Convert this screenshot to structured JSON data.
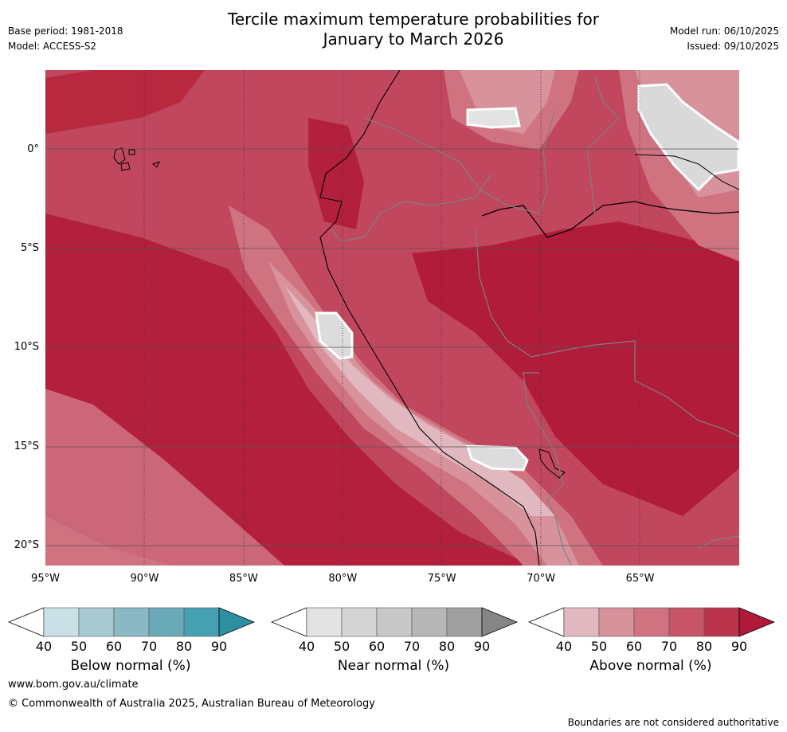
{
  "header": {
    "base_period": "Base period: 1981-2018",
    "model": "Model: ACCESS-S2",
    "title_line1": "Tercile maximum temperature probabilities for",
    "title_line2": "January to March 2026",
    "model_run": "Model run: 06/10/2025",
    "issued": "Issued: 09/10/2025"
  },
  "map": {
    "extent": {
      "lon_min": -95,
      "lon_max": -60,
      "lat_min": -21,
      "lat_max": 4
    },
    "lat_ticks": [
      {
        "value": 0,
        "label": "0°"
      },
      {
        "value": -5,
        "label": "5°S"
      },
      {
        "value": -10,
        "label": "10°S"
      },
      {
        "value": -15,
        "label": "15°S"
      },
      {
        "value": -20,
        "label": "20°S"
      }
    ],
    "lon_ticks": [
      {
        "value": -95,
        "label": "95°W"
      },
      {
        "value": -90,
        "label": "90°W"
      },
      {
        "value": -85,
        "label": "85°W"
      },
      {
        "value": -80,
        "label": "80°W"
      },
      {
        "value": -75,
        "label": "75°W"
      },
      {
        "value": -70,
        "label": "70°W"
      },
      {
        "value": -65,
        "label": "65°W"
      }
    ],
    "dominant_category": "Above normal",
    "near_normal_patches": [
      "northern Peru coast offshore",
      "southern Peru highlands",
      "Colombia–Venezuela border",
      "northern Brazil (Roraima)"
    ]
  },
  "colorbars": [
    {
      "title": "Below normal (%)",
      "ticks": [
        "40",
        "50",
        "60",
        "70",
        "80",
        "90"
      ],
      "colors": [
        "#ffffff",
        "#c8e0e6",
        "#a8c9d1",
        "#8ab8c4",
        "#6aa9b6",
        "#45a0b1",
        "#2e8fa3"
      ]
    },
    {
      "title": "Near normal (%)",
      "ticks": [
        "40",
        "50",
        "60",
        "70",
        "80",
        "90"
      ],
      "colors": [
        "#ffffff",
        "#e3e3e3",
        "#d4d4d4",
        "#c7c7c7",
        "#b6b6b6",
        "#a0a0a0",
        "#868686"
      ]
    },
    {
      "title": "Above normal (%)",
      "ticks": [
        "40",
        "50",
        "60",
        "70",
        "80",
        "90"
      ],
      "colors": [
        "#ffffff",
        "#e2b8c0",
        "#d7929b",
        "#cf7381",
        "#c85468",
        "#ba344b",
        "#b1193a"
      ]
    }
  ],
  "footer": {
    "url": "www.bom.gov.au/climate",
    "copyright": "© Commonwealth of Australia 2025, Australian Bureau of Meteorology",
    "disclaimer": "Boundaries are not considered authoritative"
  }
}
